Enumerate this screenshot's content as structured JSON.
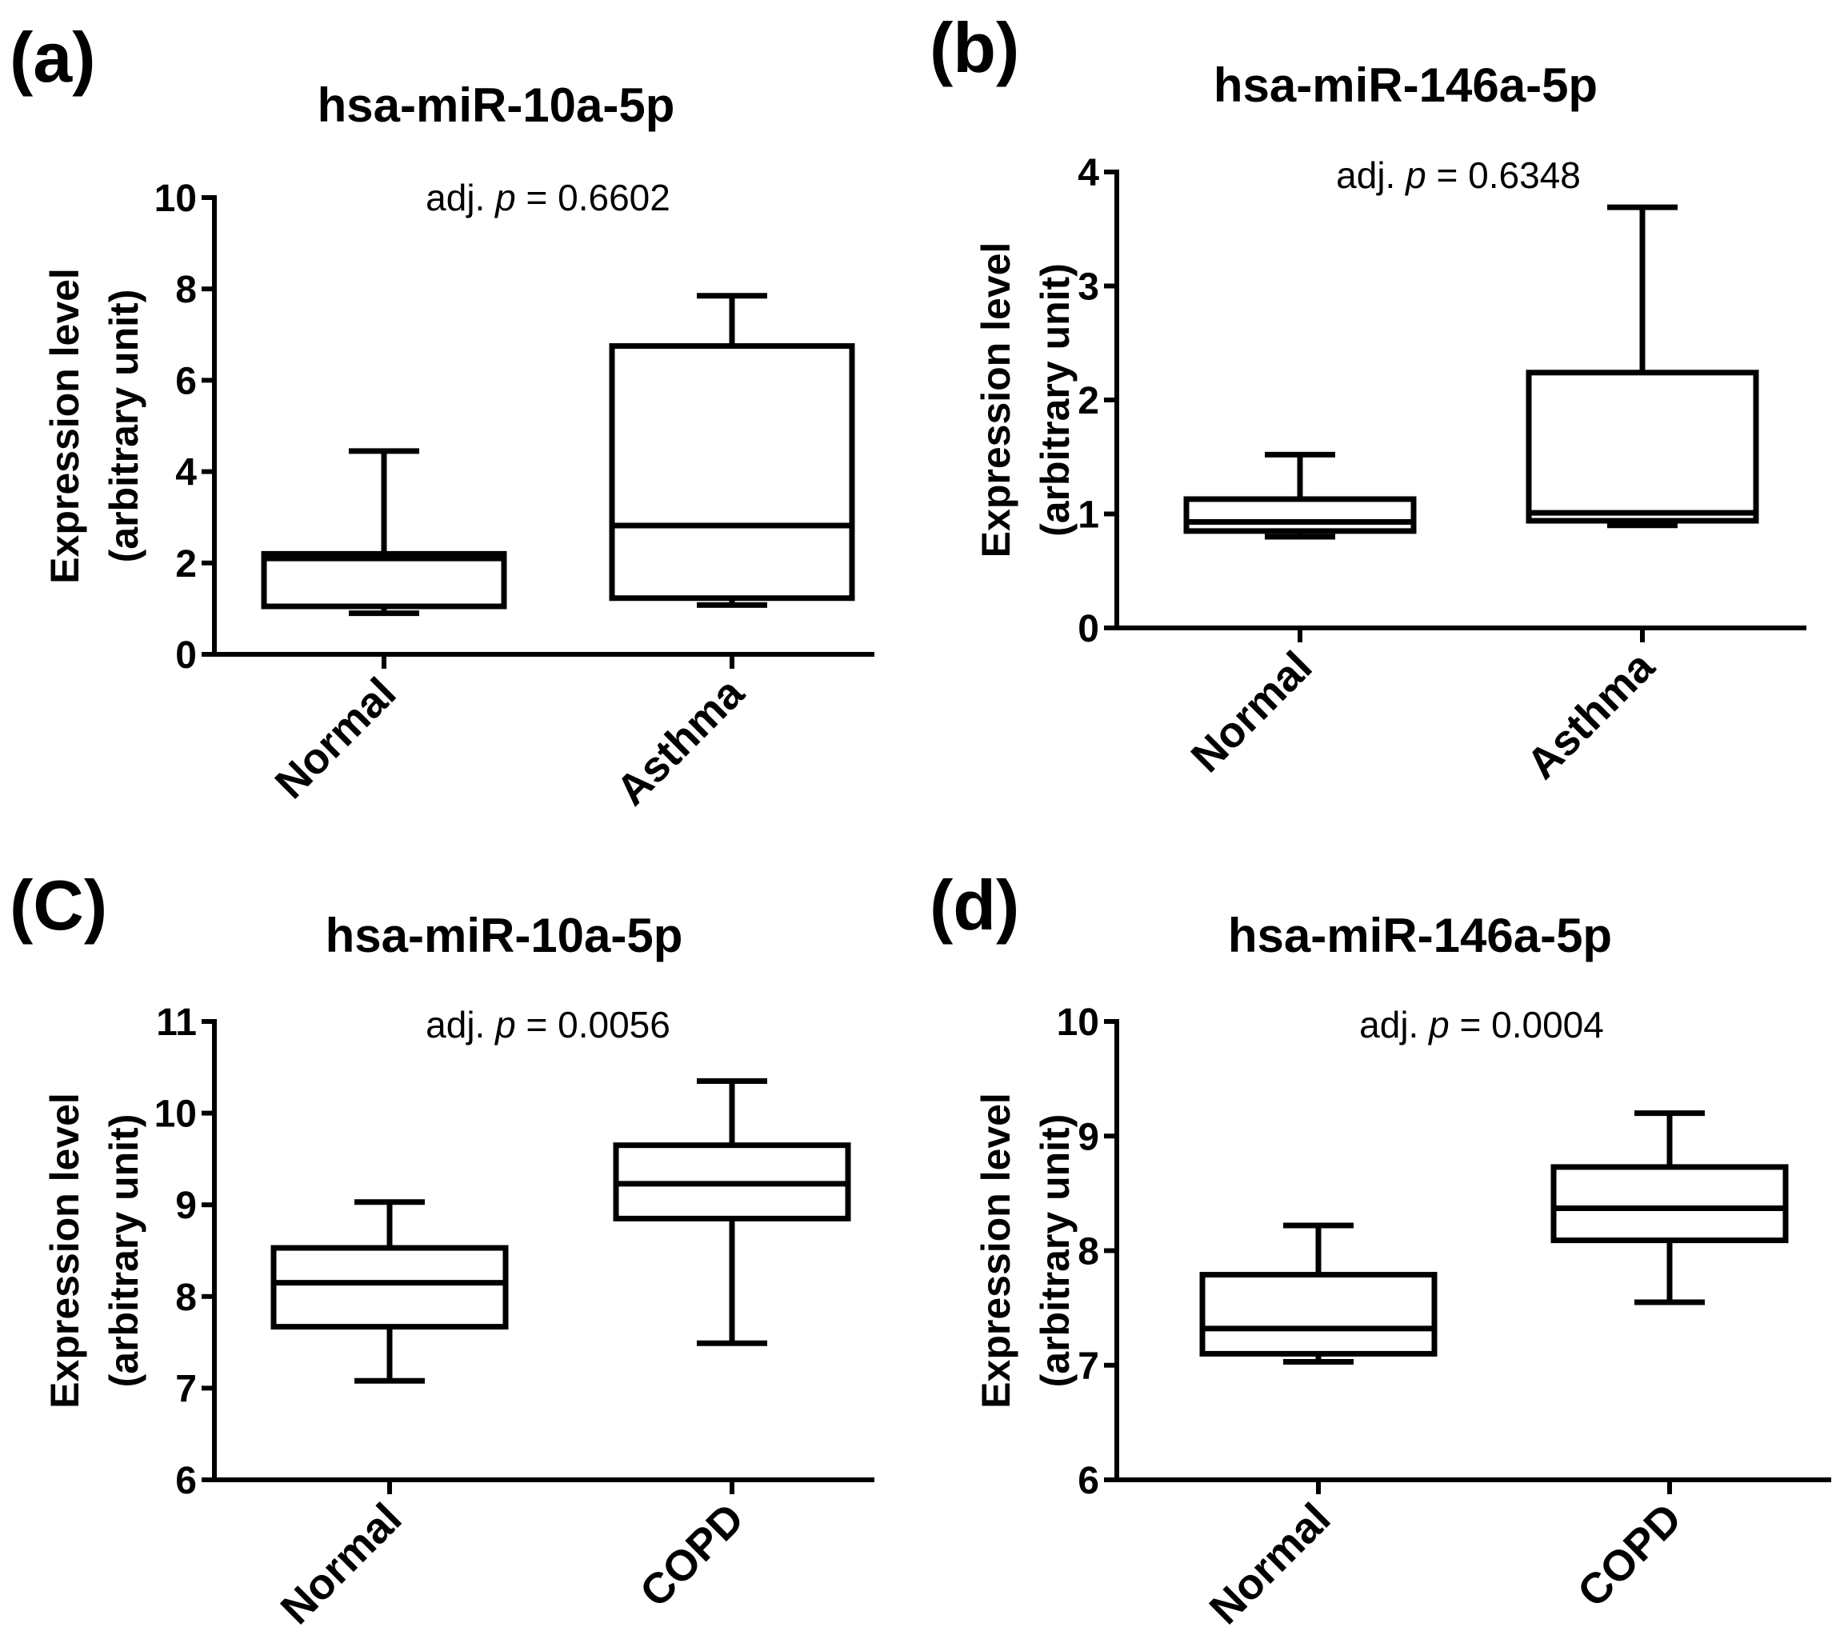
{
  "panels": [
    {
      "letter": "(a)",
      "title": "hsa-miR-10a-5p",
      "pvalue": {
        "prefix": "adj. ",
        "var": "p",
        "suffix": " = 0.6602"
      },
      "ylabel_line1": "Expression level",
      "ylabel_line2": "(arbitrary unit)"
    },
    {
      "letter": "(b)",
      "title": "hsa-miR-146a-5p",
      "pvalue": {
        "prefix": "adj. ",
        "var": "p",
        "suffix": " = 0.6348"
      },
      "ylabel_line1": "Expression level",
      "ylabel_line2": "(arbitrary unit)"
    },
    {
      "letter": "(C)",
      "title": "hsa-miR-10a-5p",
      "pvalue": {
        "prefix": "adj. ",
        "var": "p",
        "suffix": " = 0.0056"
      },
      "ylabel_line1": "Expression level",
      "ylabel_line2": "(arbitrary unit)"
    },
    {
      "letter": "(d)",
      "title": "hsa-miR-146a-5p",
      "pvalue": {
        "prefix": "adj. ",
        "var": "p",
        "suffix": " = 0.0004"
      },
      "ylabel_line1": "Expression level",
      "ylabel_line2": "(arbitrary unit)"
    }
  ],
  "chart_data": [
    {
      "type": "box",
      "title": "hsa-miR-10a-5p",
      "ylabel": "Expression level (arbitrary unit)",
      "ylim": [
        0,
        10
      ],
      "yticks": [
        0,
        2,
        4,
        6,
        8,
        10
      ],
      "categories": [
        "Normal",
        "Asthma"
      ],
      "boxes": [
        {
          "category": "Normal",
          "min": 0.9,
          "q1": 1.05,
          "median": 2.1,
          "q3": 2.2,
          "max": 4.45
        },
        {
          "category": "Asthma",
          "min": 1.08,
          "q1": 1.23,
          "median": 2.82,
          "q3": 6.75,
          "max": 7.85
        }
      ],
      "annotation": "adj. p = 0.6602"
    },
    {
      "type": "box",
      "title": "hsa-miR-146a-5p",
      "ylabel": "Expression level (arbitrary unit)",
      "ylim": [
        0,
        4
      ],
      "yticks": [
        0,
        1,
        2,
        3,
        4
      ],
      "categories": [
        "Normal",
        "Asthma"
      ],
      "boxes": [
        {
          "category": "Normal",
          "min": 0.8,
          "q1": 0.85,
          "median": 0.93,
          "q3": 1.13,
          "max": 1.52
        },
        {
          "category": "Asthma",
          "min": 0.9,
          "q1": 0.94,
          "median": 1.01,
          "q3": 2.24,
          "max": 3.69
        }
      ],
      "annotation": "adj. p = 0.6348"
    },
    {
      "type": "box",
      "title": "hsa-miR-10a-5p",
      "ylabel": "Expression level (arbitrary unit)",
      "ylim": [
        6,
        11
      ],
      "yticks": [
        6,
        7,
        8,
        9,
        10,
        11
      ],
      "categories": [
        "Normal",
        "COPD"
      ],
      "boxes": [
        {
          "category": "Normal",
          "min": 7.08,
          "q1": 7.67,
          "median": 8.15,
          "q3": 8.53,
          "max": 9.03
        },
        {
          "category": "COPD",
          "min": 7.49,
          "q1": 8.85,
          "median": 9.23,
          "q3": 9.65,
          "max": 10.35
        }
      ],
      "annotation": "adj. p = 0.0056"
    },
    {
      "type": "box",
      "title": "hsa-miR-146a-5p",
      "ylabel": "Expression level (arbitrary unit)",
      "ylim": [
        6,
        10
      ],
      "yticks": [
        6,
        7,
        8,
        9,
        10
      ],
      "categories": [
        "Normal",
        "COPD"
      ],
      "boxes": [
        {
          "category": "Normal",
          "min": 7.03,
          "q1": 7.1,
          "median": 7.32,
          "q3": 7.79,
          "max": 8.22
        },
        {
          "category": "COPD",
          "min": 7.55,
          "q1": 8.09,
          "median": 8.37,
          "q3": 8.73,
          "max": 9.2
        }
      ],
      "annotation": "adj. p = 0.0004"
    }
  ]
}
